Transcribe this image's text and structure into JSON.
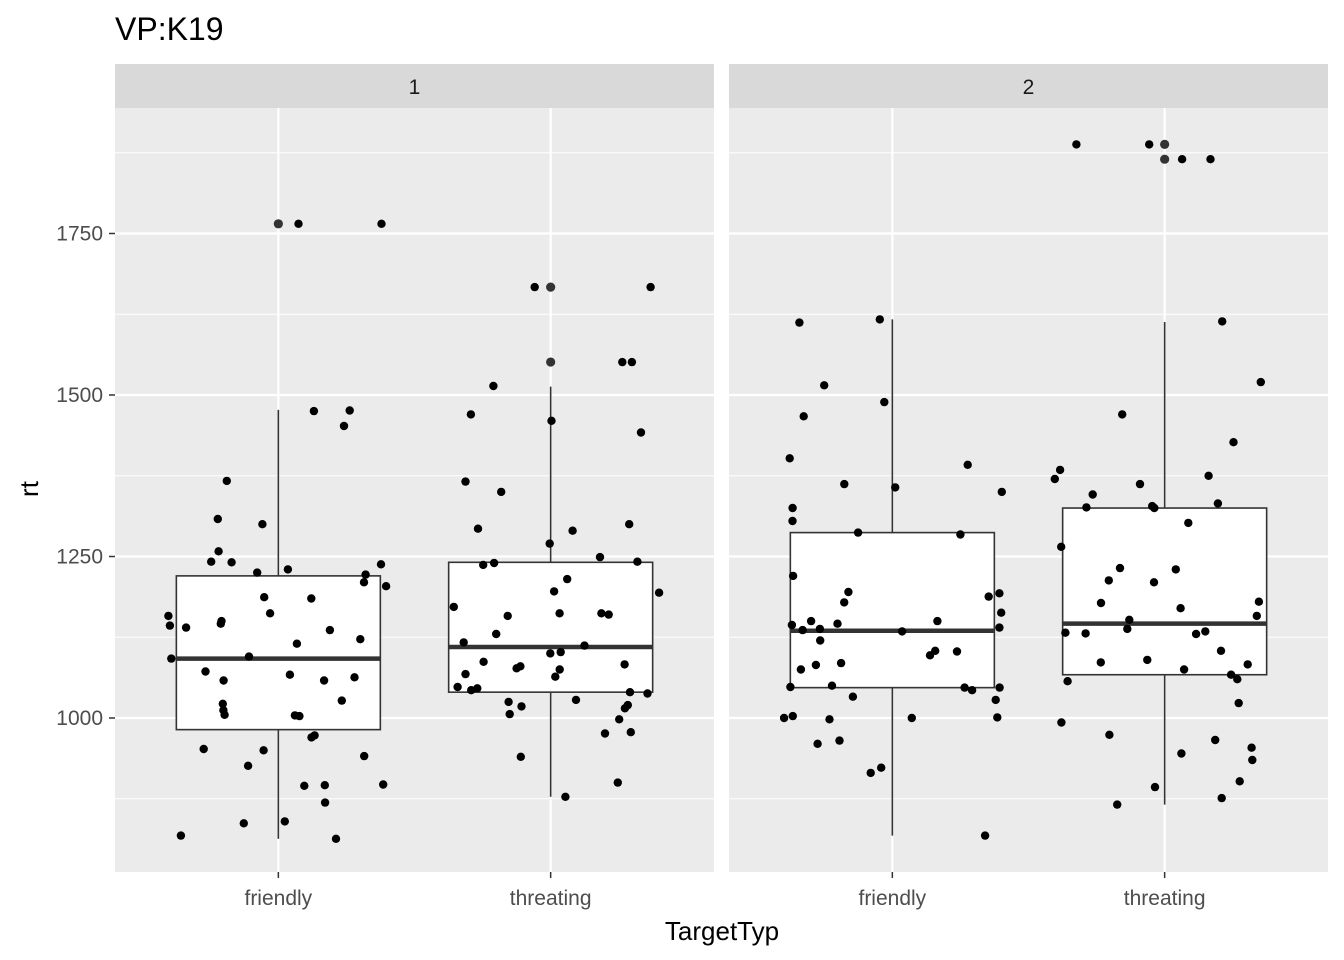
{
  "chart_data": {
    "type": "boxplot",
    "title": "VP:K19",
    "xlabel": "TargetTyp",
    "ylabel": "rt",
    "categories": [
      "friendly",
      "threating"
    ],
    "y_ticks": [
      1000,
      1250,
      1500,
      1750
    ],
    "ylim": [
      763,
      1943
    ],
    "grid": true,
    "facets": [
      {
        "label": "1",
        "groups": [
          {
            "category": "friendly",
            "box": {
              "lower_whisker": 813,
              "q1": 982,
              "median": 1092,
              "q3": 1220,
              "upper_whisker": 1477
            },
            "points": [
              1765,
              1765,
              1475,
              1476,
              1452,
              1367,
              1300,
              1308,
              1258,
              1242,
              1241,
              1238,
              1230,
              1225,
              1222,
              1210,
              1204,
              1187,
              1185,
              1162,
              1158,
              1150,
              1146,
              1143,
              1140,
              1136,
              1122,
              1115,
              1095,
              1092,
              1072,
              1067,
              1063,
              1058,
              1058,
              1027,
              1022,
              1012,
              1005,
              1004,
              1003,
              973,
              970,
              952,
              950,
              941,
              926,
              897,
              896,
              895,
              869,
              840,
              837,
              818,
              813
            ],
            "outliers": [
              1765
            ]
          },
          {
            "category": "threating",
            "box": {
              "lower_whisker": 878,
              "q1": 1040,
              "median": 1110,
              "q3": 1241,
              "upper_whisker": 1513
            },
            "points": [
              1667,
              1667,
              1551,
              1551,
              1514,
              1470,
              1460,
              1442,
              1366,
              1350,
              1300,
              1293,
              1290,
              1270,
              1249,
              1242,
              1240,
              1237,
              1215,
              1196,
              1194,
              1172,
              1162,
              1162,
              1160,
              1158,
              1130,
              1117,
              1112,
              1102,
              1100,
              1087,
              1083,
              1080,
              1077,
              1075,
              1068,
              1064,
              1048,
              1046,
              1043,
              1040,
              1038,
              1028,
              1025,
              1020,
              1018,
              1015,
              1006,
              998,
              978,
              976,
              940,
              900,
              878
            ],
            "outliers": [
              1667,
              1551
            ]
          }
        ]
      },
      {
        "label": "2",
        "groups": [
          {
            "category": "friendly",
            "box": {
              "lower_whisker": 818,
              "q1": 1047,
              "median": 1135,
              "q3": 1287,
              "upper_whisker": 1617
            },
            "points": [
              1617,
              1612,
              1515,
              1489,
              1467,
              1402,
              1392,
              1362,
              1357,
              1350,
              1325,
              1305,
              1287,
              1284,
              1220,
              1195,
              1193,
              1188,
              1179,
              1163,
              1150,
              1150,
              1146,
              1144,
              1140,
              1138,
              1136,
              1134,
              1120,
              1104,
              1103,
              1097,
              1085,
              1082,
              1075,
              1050,
              1048,
              1047,
              1047,
              1043,
              1033,
              1028,
              1003,
              1001,
              1000,
              1000,
              998,
              965,
              960,
              923,
              915,
              818
            ],
            "outliers": []
          },
          {
            "category": "threating",
            "box": {
              "lower_whisker": 866,
              "q1": 1067,
              "median": 1146,
              "q3": 1325,
              "upper_whisker": 1613
            },
            "points": [
              1888,
              1888,
              1865,
              1865,
              1614,
              1520,
              1470,
              1427,
              1384,
              1375,
              1370,
              1362,
              1346,
              1332,
              1328,
              1326,
              1325,
              1302,
              1265,
              1230,
              1232,
              1213,
              1210,
              1180,
              1178,
              1170,
              1158,
              1152,
              1138,
              1134,
              1132,
              1131,
              1130,
              1104,
              1090,
              1086,
              1083,
              1075,
              1067,
              1060,
              1057,
              1023,
              993,
              974,
              966,
              954,
              945,
              935,
              902,
              893,
              876,
              866
            ],
            "outliers": [
              1888,
              1865
            ]
          }
        ]
      }
    ]
  }
}
